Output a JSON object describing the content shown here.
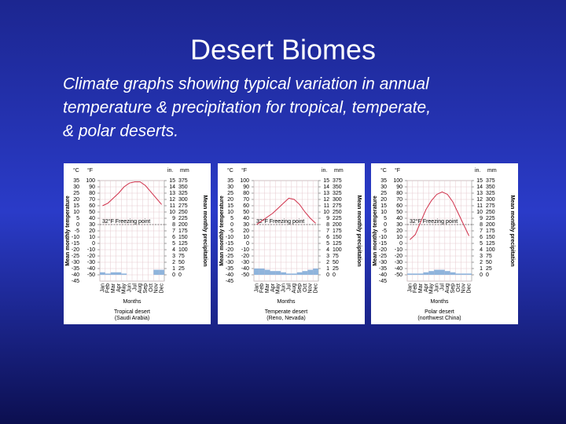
{
  "title": "Desert Biomes",
  "body": [
    "Climate graphs showing typical variation in annual",
    "temperature & precipitation for tropical, temperate,",
    "& polar deserts."
  ],
  "graphs": [
    {
      "type": "line",
      "celsius_label": "°C",
      "fahrenheit_label": "°F",
      "inches_label": "in.",
      "mm_label": "mm",
      "y_label": "Mean monthly temperature",
      "y2_label": "Mean monthly precipitation",
      "x_label": "Months",
      "freezing_label": "32°F Freezing point",
      "freezing_line": 0,
      "caption": "Tropical desert",
      "location": "(Saudi Arabia)",
      "months": [
        "Jan",
        "Feb",
        "Mar",
        "Apr",
        "May",
        "Jun",
        "Jul",
        "Aug",
        "Sep",
        "Oct",
        "Nov",
        "Dec"
      ],
      "ylim": [
        -45,
        35
      ],
      "celsius_ticks": [
        35,
        30,
        25,
        20,
        15,
        10,
        5,
        0,
        -5,
        -10,
        -15,
        -20,
        -25,
        -30,
        -35,
        -40,
        -45
      ],
      "fahrenheit_ticks": [
        100,
        90,
        80,
        70,
        60,
        50,
        40,
        30,
        20,
        10,
        0,
        -10,
        -20,
        -30,
        -40,
        -50
      ],
      "inch_ticks": [
        15,
        14,
        13,
        12,
        11,
        10,
        9,
        8,
        7,
        6,
        5,
        4,
        3,
        2,
        1,
        0
      ],
      "mm_ticks": [
        375,
        350,
        325,
        300,
        275,
        250,
        225,
        200,
        175,
        150,
        125,
        100,
        75,
        50,
        25,
        0
      ],
      "temperature": [
        15,
        17,
        21,
        25,
        30,
        33,
        34,
        34,
        31,
        26,
        21,
        16
      ],
      "precipitation": [
        10,
        5,
        10,
        10,
        5,
        0,
        0,
        0,
        0,
        0,
        20,
        20
      ]
    },
    {
      "type": "line",
      "celsius_label": "°C",
      "fahrenheit_label": "°F",
      "inches_label": "in.",
      "mm_label": "mm",
      "y_label": "Mean monthly temperature",
      "y2_label": "Mean monthly precipitation",
      "x_label": "Months",
      "freezing_label": "32°F Freezing point",
      "freezing_line": 0,
      "caption": "Temperate desert",
      "location": "(Reno, Nevada)",
      "months": [
        "Jan",
        "Feb",
        "Mar",
        "Apr",
        "May",
        "Jun",
        "Jul",
        "Aug",
        "Sep",
        "Oct",
        "Nov",
        "Dec"
      ],
      "ylim": [
        -45,
        35
      ],
      "celsius_ticks": [
        35,
        30,
        25,
        20,
        15,
        10,
        5,
        0,
        -5,
        -10,
        -15,
        -20,
        -25,
        -30,
        -35,
        -40,
        -45
      ],
      "fahrenheit_ticks": [
        100,
        90,
        80,
        70,
        60,
        50,
        40,
        30,
        20,
        10,
        0,
        -10,
        -20,
        -30,
        -40,
        -50
      ],
      "inch_ticks": [
        15,
        14,
        13,
        12,
        11,
        10,
        9,
        8,
        7,
        6,
        5,
        4,
        3,
        2,
        1,
        0
      ],
      "mm_ticks": [
        375,
        350,
        325,
        300,
        275,
        250,
        225,
        200,
        175,
        150,
        125,
        100,
        75,
        50,
        25,
        0
      ],
      "temperature": [
        0,
        3,
        6,
        9,
        13,
        17,
        21,
        20,
        16,
        10,
        5,
        1
      ],
      "precipitation": [
        25,
        25,
        20,
        15,
        15,
        10,
        5,
        5,
        10,
        15,
        20,
        25
      ]
    },
    {
      "type": "line",
      "celsius_label": "°C",
      "fahrenheit_label": "°F",
      "inches_label": "in.",
      "mm_label": "mm",
      "y_label": "Mean monthly temperature",
      "y2_label": "Mean monthly precipitation",
      "x_label": "Months",
      "freezing_label": "32°F Freezing point",
      "freezing_line": 0,
      "caption": "Polar desert",
      "location": "(northwest China)",
      "months": [
        "Jan",
        "Feb",
        "Mar",
        "Apr",
        "May",
        "Jun",
        "Jul",
        "Aug",
        "Sep",
        "Oct",
        "Nov",
        "Dec"
      ],
      "ylim": [
        -45,
        35
      ],
      "celsius_ticks": [
        35,
        30,
        25,
        20,
        15,
        10,
        5,
        0,
        -5,
        -10,
        -15,
        -20,
        -25,
        -30,
        -35,
        -40,
        -45
      ],
      "fahrenheit_ticks": [
        100,
        90,
        80,
        70,
        60,
        50,
        40,
        30,
        20,
        10,
        0,
        -10,
        -20,
        -30,
        -40,
        -50
      ],
      "inch_ticks": [
        15,
        14,
        13,
        12,
        11,
        10,
        9,
        8,
        7,
        6,
        5,
        4,
        3,
        2,
        1,
        0
      ],
      "mm_ticks": [
        375,
        350,
        325,
        300,
        275,
        250,
        225,
        200,
        175,
        150,
        125,
        100,
        75,
        50,
        25,
        0
      ],
      "temperature": [
        -12,
        -8,
        2,
        12,
        19,
        24,
        26,
        24,
        18,
        9,
        0,
        -9
      ],
      "precipitation": [
        5,
        5,
        5,
        10,
        15,
        20,
        20,
        15,
        10,
        5,
        5,
        5
      ]
    }
  ]
}
